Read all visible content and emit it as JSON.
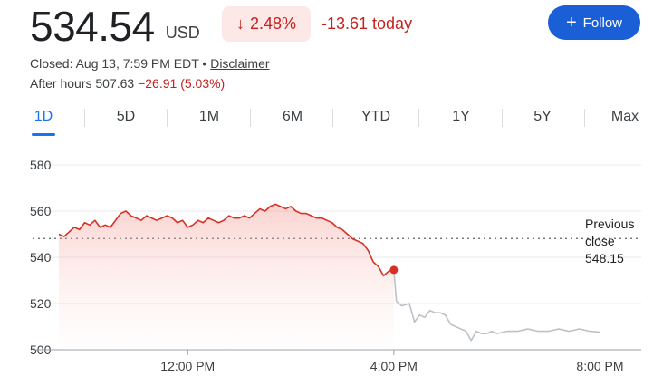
{
  "quote": {
    "price": "534.54",
    "currency": "USD",
    "change_pct": "2.48%",
    "change_abs": "-13.61 today",
    "closed_text": "Closed: Aug 13, 7:59 PM EDT",
    "separator": "•",
    "disclaimer": "Disclaimer",
    "after_hours_label": "After hours",
    "after_hours_price": "507.63",
    "after_hours_change": "−26.91 (5.03%)"
  },
  "follow_button": {
    "label": "Follow"
  },
  "tabs": [
    {
      "label": "1D",
      "active": true
    },
    {
      "label": "5D",
      "active": false
    },
    {
      "label": "1M",
      "active": false
    },
    {
      "label": "6M",
      "active": false
    },
    {
      "label": "YTD",
      "active": false
    },
    {
      "label": "1Y",
      "active": false
    },
    {
      "label": "5Y",
      "active": false
    },
    {
      "label": "Max",
      "active": false
    }
  ],
  "previous_close": {
    "line1": "Previous",
    "line2": "close",
    "value": "548.15"
  },
  "colors": {
    "negative": "#c5221f",
    "accent": "#1a73e8",
    "line_regular": "#d93025",
    "line_after_hours": "#bdc1c6"
  },
  "chart_data": {
    "type": "line",
    "ylim": [
      500,
      580
    ],
    "yticks": [
      500,
      520,
      540,
      560,
      580
    ],
    "y_tick_labels": [
      "500",
      "520",
      "540",
      "560",
      "580"
    ],
    "x_tick_labels": [
      "12:00 PM",
      "4:00 PM",
      "8:00 PM"
    ],
    "x_tick_hours": [
      12,
      16,
      20
    ],
    "xlim_hours": [
      9.5,
      20.8
    ],
    "reference_line": 548.15,
    "grid": true,
    "series": [
      {
        "segment": "regular",
        "x_hours": [
          9.5,
          9.6,
          9.7,
          9.8,
          9.9,
          10.0,
          10.1,
          10.2,
          10.3,
          10.4,
          10.5,
          10.6,
          10.7,
          10.8,
          10.9,
          11.0,
          11.1,
          11.2,
          11.3,
          11.4,
          11.5,
          11.6,
          11.7,
          11.8,
          11.9,
          12.0,
          12.1,
          12.2,
          12.3,
          12.4,
          12.5,
          12.6,
          12.7,
          12.8,
          12.9,
          13.0,
          13.1,
          13.2,
          13.3,
          13.4,
          13.5,
          13.6,
          13.7,
          13.8,
          13.9,
          14.0,
          14.1,
          14.2,
          14.3,
          14.4,
          14.5,
          14.6,
          14.7,
          14.8,
          14.9,
          15.0,
          15.1,
          15.2,
          15.3,
          15.4,
          15.5,
          15.6,
          15.7,
          15.8,
          15.9,
          16.0
        ],
        "values": [
          550,
          549,
          551,
          553,
          552,
          555,
          554,
          556,
          553,
          554,
          553,
          556,
          559,
          560,
          558,
          557,
          556,
          558,
          557,
          556,
          557,
          558,
          557,
          555,
          556,
          553,
          554,
          556,
          555,
          557,
          556,
          555,
          556,
          558,
          557,
          557,
          558,
          557,
          559,
          561,
          560,
          562,
          563,
          562,
          561,
          562,
          560,
          559,
          559,
          558,
          557,
          557,
          556,
          555,
          553,
          552,
          550,
          548,
          547,
          546,
          543,
          538,
          536,
          532,
          534,
          534.54
        ]
      },
      {
        "segment": "after_hours",
        "x_hours": [
          16.0,
          16.05,
          16.15,
          16.3,
          16.4,
          16.5,
          16.6,
          16.7,
          16.8,
          16.9,
          17.0,
          17.1,
          17.2,
          17.3,
          17.4,
          17.5,
          17.6,
          17.7,
          17.8,
          17.9,
          18.0,
          18.2,
          18.4,
          18.6,
          18.8,
          19.0,
          19.2,
          19.4,
          19.6,
          19.8,
          20.0
        ],
        "values": [
          534.54,
          521,
          519,
          520,
          512,
          515,
          514,
          517,
          516,
          516,
          515,
          511,
          510,
          509,
          508,
          504,
          508,
          507,
          507,
          508,
          507,
          508,
          508,
          509,
          508,
          508,
          509,
          508,
          509,
          508,
          507.63
        ]
      }
    ]
  }
}
